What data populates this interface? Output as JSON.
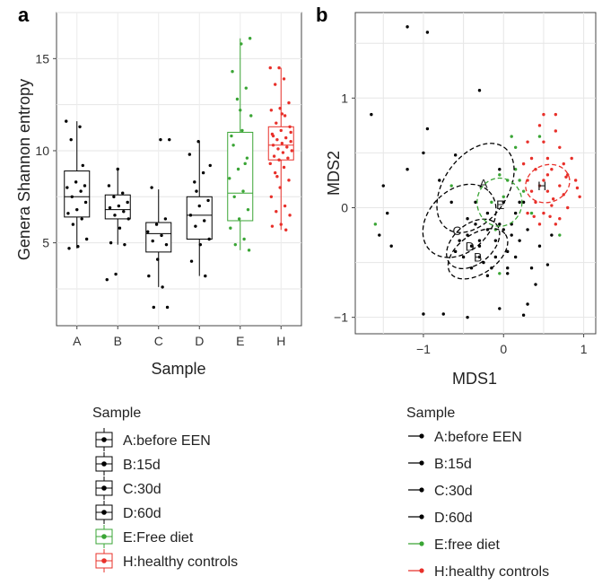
{
  "chart_data": [
    {
      "panel": "a",
      "type": "box",
      "xlabel": "Sample",
      "ylabel": "Genera Shannon entropy",
      "ylim": [
        0.5,
        17.5
      ],
      "yticks": [
        5,
        10,
        15
      ],
      "grid": true,
      "categories": [
        "A",
        "B",
        "C",
        "D",
        "E",
        "H"
      ],
      "boxes": [
        {
          "category": "A",
          "q1": 6.4,
          "median": 7.5,
          "q3": 8.9,
          "whisker_low": 4.7,
          "whisker_high": 11.6,
          "color": "#000000",
          "points": [
            11.6,
            11.3,
            10.6,
            8.1,
            8.3,
            8.0,
            7.8,
            7.5,
            7.2,
            6.8,
            6.6,
            6.3,
            6.0,
            5.2,
            4.8,
            4.7,
            9.2
          ]
        },
        {
          "category": "B",
          "q1": 6.3,
          "median": 6.8,
          "q3": 7.6,
          "whisker_low": 4.9,
          "whisker_high": 9.0,
          "color": "#000000",
          "points": [
            9.0,
            8.1,
            7.7,
            7.5,
            7.2,
            7.0,
            6.9,
            6.7,
            6.5,
            6.3,
            5.8,
            5.0,
            4.9,
            3.3,
            3.0
          ]
        },
        {
          "category": "C",
          "q1": 4.5,
          "median": 5.5,
          "q3": 6.1,
          "whisker_low": 2.6,
          "whisker_high": 7.9,
          "color": "#000000",
          "points": [
            10.6,
            10.6,
            8.0,
            6.3,
            6.0,
            5.6,
            5.4,
            5.1,
            4.9,
            4.1,
            3.2,
            2.6,
            1.5,
            1.5
          ]
        },
        {
          "category": "D",
          "q1": 5.2,
          "median": 6.5,
          "q3": 7.5,
          "whisker_low": 3.2,
          "whisker_high": 10.5,
          "color": "#000000",
          "points": [
            10.5,
            9.8,
            8.8,
            8.3,
            7.3,
            7.0,
            6.5,
            6.2,
            5.9,
            5.2,
            4.9,
            4.0,
            3.2,
            7.8,
            9.2
          ]
        },
        {
          "category": "E",
          "q1": 6.2,
          "median": 7.7,
          "q3": 11.0,
          "whisker_low": 4.6,
          "whisker_high": 16.1,
          "color": "#3aa535",
          "points": [
            16.1,
            15.8,
            14.3,
            13.4,
            12.8,
            11.9,
            11.1,
            10.3,
            9.6,
            9.0,
            8.5,
            7.8,
            7.5,
            6.8,
            6.3,
            5.8,
            5.2,
            4.9,
            4.6,
            12.2,
            10.8,
            9.3
          ]
        },
        {
          "category": "H",
          "q1": 9.5,
          "median": 10.3,
          "q3": 11.3,
          "whisker_low": 5.7,
          "whisker_high": 14.5,
          "color": "#e8302a",
          "points": [
            14.5,
            14.5,
            13.9,
            13.6,
            12.6,
            12.3,
            12.2,
            11.9,
            11.5,
            11.3,
            11.1,
            10.9,
            10.7,
            10.6,
            10.5,
            10.4,
            10.3,
            10.2,
            10.1,
            10.0,
            9.9,
            9.7,
            9.6,
            9.5,
            9.3,
            9.1,
            8.8,
            8.4,
            8.0,
            7.5,
            7.0,
            6.7,
            6.5,
            6.0,
            5.9,
            5.7,
            8.6,
            11.0,
            12.0,
            10.8
          ]
        }
      ],
      "legend": {
        "title": "Sample",
        "entries": [
          {
            "label": "A:before EEN",
            "color": "#000000"
          },
          {
            "label": "B:15d",
            "color": "#000000"
          },
          {
            "label": "C:30d",
            "color": "#000000"
          },
          {
            "label": "D:60d",
            "color": "#000000"
          },
          {
            "label": "E:Free diet",
            "color": "#3aa535"
          },
          {
            "label": "H:healthy controls",
            "color": "#e8302a"
          }
        ]
      }
    },
    {
      "panel": "b",
      "type": "scatter",
      "xlabel": "MDS1",
      "ylabel": "MDS2",
      "xlim": [
        -1.85,
        1.15
      ],
      "ylim": [
        -1.15,
        1.78
      ],
      "xticks": [
        -1,
        0,
        1
      ],
      "yticks": [
        -1,
        0,
        1
      ],
      "grid": true,
      "series": [
        {
          "name": "A:before EEN",
          "color": "#000000",
          "points": [
            [
              -1.2,
              1.65
            ],
            [
              -0.95,
              1.6
            ],
            [
              -1.65,
              0.85
            ],
            [
              -0.3,
              1.07
            ],
            [
              -0.95,
              0.72
            ],
            [
              -1.0,
              0.5
            ],
            [
              -0.8,
              0.25
            ],
            [
              -1.5,
              0.2
            ],
            [
              -1.45,
              -0.05
            ],
            [
              -1.55,
              -0.25
            ],
            [
              -1.4,
              -0.35
            ],
            [
              -1.0,
              -0.97
            ],
            [
              -0.75,
              -0.97
            ],
            [
              -0.45,
              -1.0
            ],
            [
              -0.05,
              -0.92
            ],
            [
              0.25,
              -0.98
            ],
            [
              0.3,
              -0.88
            ],
            [
              0.4,
              -0.7
            ],
            [
              0.55,
              -0.52
            ],
            [
              0.05,
              -0.55
            ],
            [
              -0.2,
              -0.62
            ],
            [
              0.3,
              -0.2
            ],
            [
              0.45,
              -0.35
            ],
            [
              0.6,
              -0.25
            ],
            [
              0.25,
              0.05
            ],
            [
              -0.05,
              0.35
            ],
            [
              -0.6,
              0.48
            ],
            [
              -1.2,
              0.35
            ]
          ]
        },
        {
          "name": "B:15d",
          "color": "#000000",
          "points": [
            [
              -0.3,
              -0.45
            ],
            [
              -0.25,
              -0.5
            ],
            [
              -0.15,
              -0.55
            ],
            [
              -0.4,
              -0.35
            ],
            [
              -0.1,
              -0.3
            ],
            [
              0.05,
              -0.4
            ],
            [
              0.15,
              -0.45
            ],
            [
              0.2,
              -0.3
            ],
            [
              -0.35,
              -0.15
            ],
            [
              -0.6,
              -0.4
            ],
            [
              0.35,
              -0.55
            ],
            [
              0.1,
              -0.25
            ]
          ]
        },
        {
          "name": "C:30d",
          "color": "#000000",
          "points": [
            [
              -0.55,
              -0.3
            ],
            [
              -0.45,
              -0.25
            ],
            [
              -0.5,
              -0.45
            ],
            [
              -0.3,
              -0.3
            ],
            [
              -0.2,
              -0.2
            ],
            [
              0.0,
              -0.2
            ],
            [
              -0.65,
              0.05
            ],
            [
              0.1,
              -0.15
            ],
            [
              -0.35,
              0.05
            ],
            [
              0.05,
              -0.6
            ]
          ]
        },
        {
          "name": "D:60d",
          "color": "#000000",
          "points": [
            [
              -0.3,
              -0.35
            ],
            [
              -0.4,
              -0.55
            ],
            [
              -0.1,
              -0.45
            ],
            [
              -0.2,
              -0.05
            ],
            [
              0.0,
              0.05
            ],
            [
              -0.45,
              -0.1
            ],
            [
              0.15,
              -0.05
            ],
            [
              0.2,
              0.05
            ],
            [
              -0.05,
              -0.15
            ]
          ]
        },
        {
          "name": "E:free diet",
          "color": "#3aa535",
          "points": [
            [
              -0.05,
              0.3
            ],
            [
              0.05,
              0.25
            ],
            [
              0.15,
              0.35
            ],
            [
              0.2,
              0.25
            ],
            [
              0.25,
              0.15
            ],
            [
              0.0,
              0.1
            ],
            [
              -0.15,
              0.05
            ],
            [
              0.15,
              0.55
            ],
            [
              0.1,
              0.65
            ],
            [
              -1.6,
              -0.15
            ],
            [
              -0.65,
              0.2
            ],
            [
              -0.05,
              -0.6
            ],
            [
              0.7,
              -0.25
            ],
            [
              0.45,
              0.65
            ],
            [
              -0.1,
              -0.2
            ],
            [
              0.35,
              -0.05
            ]
          ]
        },
        {
          "name": "H:healthy controls",
          "color": "#e8302a",
          "points": [
            [
              0.5,
              0.85
            ],
            [
              0.65,
              0.85
            ],
            [
              0.45,
              0.75
            ],
            [
              0.3,
              0.6
            ],
            [
              0.5,
              0.6
            ],
            [
              0.7,
              0.55
            ],
            [
              0.35,
              0.45
            ],
            [
              0.55,
              0.45
            ],
            [
              0.75,
              0.4
            ],
            [
              0.4,
              0.35
            ],
            [
              0.6,
              0.35
            ],
            [
              0.8,
              0.3
            ],
            [
              0.3,
              0.25
            ],
            [
              0.5,
              0.25
            ],
            [
              0.7,
              0.2
            ],
            [
              0.9,
              0.25
            ],
            [
              0.35,
              0.15
            ],
            [
              0.55,
              0.15
            ],
            [
              0.75,
              0.12
            ],
            [
              0.95,
              0.1
            ],
            [
              0.4,
              0.05
            ],
            [
              0.6,
              0.02
            ],
            [
              0.8,
              0.0
            ],
            [
              0.3,
              -0.05
            ],
            [
              0.5,
              -0.05
            ],
            [
              0.7,
              -0.1
            ],
            [
              0.45,
              -0.15
            ],
            [
              0.65,
              -0.15
            ],
            [
              0.55,
              0.3
            ],
            [
              0.85,
              0.45
            ],
            [
              0.25,
              0.4
            ],
            [
              0.65,
              0.7
            ],
            [
              0.45,
              0.2
            ],
            [
              0.62,
              0.08
            ],
            [
              0.78,
              0.28
            ],
            [
              0.38,
              -0.08
            ],
            [
              0.92,
              0.18
            ],
            [
              0.58,
              -0.08
            ]
          ]
        }
      ],
      "ellipses": [
        {
          "label": "A",
          "cx": -0.35,
          "cy": 0.18,
          "rx": 0.62,
          "ry": 0.29,
          "angle_deg": -55,
          "color": "#000000"
        },
        {
          "label": "C",
          "cx": -0.55,
          "cy": -0.12,
          "rx": 0.52,
          "ry": 0.28,
          "angle_deg": -45,
          "color": "#000000"
        },
        {
          "label": "D",
          "cx": -0.38,
          "cy": -0.33,
          "rx": 0.38,
          "ry": 0.18,
          "angle_deg": -40,
          "color": "#000000"
        },
        {
          "label": "B",
          "cx": -0.32,
          "cy": -0.42,
          "rx": 0.42,
          "ry": 0.18,
          "angle_deg": -35,
          "color": "#000000"
        },
        {
          "label": "E",
          "cx": -0.05,
          "cy": 0.05,
          "rx": 0.28,
          "ry": 0.22,
          "angle_deg": 0,
          "color": "#3aa535"
        },
        {
          "label": "H",
          "cx": 0.55,
          "cy": 0.22,
          "rx": 0.28,
          "ry": 0.17,
          "angle_deg": -20,
          "color": "#e8302a"
        }
      ],
      "ellipse_label_positions": {
        "A": [
          -0.25,
          0.22
        ],
        "E": [
          -0.04,
          0.03
        ],
        "H": [
          0.48,
          0.2
        ],
        "C": [
          -0.58,
          -0.21
        ],
        "D": [
          -0.42,
          -0.35
        ],
        "B": [
          -0.32,
          -0.45
        ]
      },
      "legend": {
        "title": "Sample",
        "entries": [
          {
            "label": "A:before EEN",
            "color": "#000000"
          },
          {
            "label": "B:15d",
            "color": "#000000"
          },
          {
            "label": "C:30d",
            "color": "#000000"
          },
          {
            "label": "D:60d",
            "color": "#000000"
          },
          {
            "label": "E:free diet",
            "color": "#3aa535"
          },
          {
            "label": "H:healthy controls",
            "color": "#e8302a"
          }
        ]
      }
    }
  ],
  "panel_labels": {
    "a": "a",
    "b": "b"
  }
}
